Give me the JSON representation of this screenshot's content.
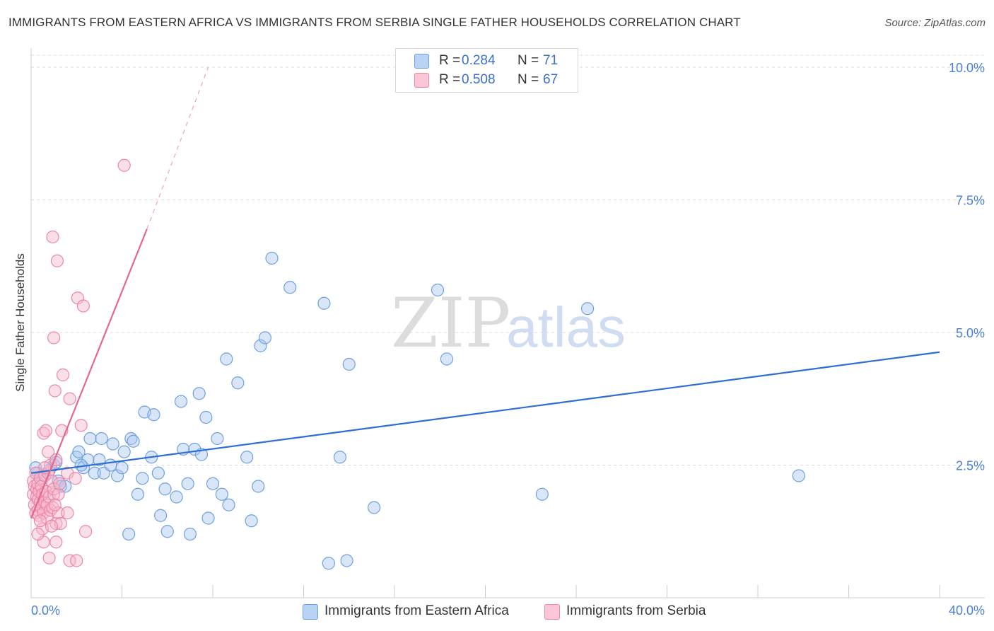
{
  "title": "IMMIGRANTS FROM EASTERN AFRICA VS IMMIGRANTS FROM SERBIA SINGLE FATHER HOUSEHOLDS CORRELATION CHART",
  "source": "Source: ZipAtlas.com",
  "watermark": {
    "zip": "ZIP",
    "atlas": "atlas"
  },
  "legend": {
    "r_label": "R =",
    "n_label": "N =",
    "rows": [
      {
        "r": "0.284",
        "n": "71"
      },
      {
        "r": "0.508",
        "n": "67"
      }
    ]
  },
  "colors": {
    "blue_fill": "#a9c8f0",
    "blue_stroke": "#6e9fe0",
    "blue_line": "#2e6fd1",
    "pink_fill": "#f6b7cb",
    "pink_stroke": "#ec86a8",
    "pink_line": "#e2688f",
    "grid": "#dedede",
    "axis_text": "#4a7fd4"
  },
  "chart_data": {
    "type": "scatter",
    "title": "IMMIGRANTS FROM EASTERN AFRICA VS IMMIGRANTS FROM SERBIA SINGLE FATHER HOUSEHOLDS CORRELATION CHART",
    "xlabel": "",
    "ylabel": "Single Father Households",
    "xlim": [
      0,
      40
    ],
    "ylim": [
      0,
      10.2
    ],
    "x_tick_labels": [
      "0.0%",
      "40.0%"
    ],
    "y_ticks": [
      2.5,
      5.0,
      7.5,
      10.0
    ],
    "y_tick_labels": [
      "2.5%",
      "5.0%",
      "7.5%",
      "10.0%"
    ],
    "grid": true,
    "series": [
      {
        "name": "Immigrants from Eastern Africa",
        "r": 0.284,
        "n": 71,
        "trend": {
          "x0": 0,
          "y0": 2.35,
          "x1": 40,
          "y1": 4.63
        },
        "points": [
          [
            0.3,
            2.35
          ],
          [
            0.6,
            2.3
          ],
          [
            0.8,
            2.4
          ],
          [
            1.0,
            2.5
          ],
          [
            1.2,
            2.2
          ],
          [
            1.3,
            2.1
          ],
          [
            1.5,
            2.1
          ],
          [
            2.0,
            2.65
          ],
          [
            2.1,
            2.75
          ],
          [
            2.3,
            2.45
          ],
          [
            2.5,
            2.6
          ],
          [
            2.6,
            3.0
          ],
          [
            2.8,
            2.35
          ],
          [
            3.0,
            2.6
          ],
          [
            3.1,
            3.0
          ],
          [
            3.2,
            2.35
          ],
          [
            3.5,
            2.5
          ],
          [
            3.6,
            2.9
          ],
          [
            3.8,
            2.3
          ],
          [
            4.0,
            2.45
          ],
          [
            4.1,
            2.75
          ],
          [
            4.3,
            1.2
          ],
          [
            4.4,
            3.0
          ],
          [
            4.5,
            2.95
          ],
          [
            4.7,
            1.95
          ],
          [
            4.9,
            2.25
          ],
          [
            5.0,
            3.5
          ],
          [
            5.3,
            2.65
          ],
          [
            5.4,
            3.45
          ],
          [
            5.6,
            2.35
          ],
          [
            5.7,
            1.55
          ],
          [
            5.9,
            2.05
          ],
          [
            6.0,
            1.25
          ],
          [
            6.4,
            1.9
          ],
          [
            6.6,
            3.7
          ],
          [
            6.7,
            2.8
          ],
          [
            6.9,
            2.15
          ],
          [
            7.0,
            1.2
          ],
          [
            7.2,
            2.8
          ],
          [
            7.4,
            3.85
          ],
          [
            7.5,
            2.7
          ],
          [
            7.7,
            3.4
          ],
          [
            7.8,
            1.5
          ],
          [
            8.0,
            2.15
          ],
          [
            8.2,
            3.0
          ],
          [
            8.4,
            1.95
          ],
          [
            8.6,
            4.5
          ],
          [
            8.7,
            1.75
          ],
          [
            9.1,
            4.05
          ],
          [
            9.5,
            2.65
          ],
          [
            9.7,
            1.45
          ],
          [
            10.0,
            2.1
          ],
          [
            10.1,
            4.75
          ],
          [
            10.3,
            4.9
          ],
          [
            10.6,
            6.4
          ],
          [
            11.4,
            5.85
          ],
          [
            12.9,
            5.55
          ],
          [
            13.1,
            0.65
          ],
          [
            13.6,
            2.65
          ],
          [
            13.9,
            0.7
          ],
          [
            14.0,
            4.4
          ],
          [
            15.1,
            1.7
          ],
          [
            17.9,
            5.8
          ],
          [
            18.3,
            4.5
          ],
          [
            22.5,
            1.95
          ],
          [
            24.5,
            5.45
          ],
          [
            33.8,
            2.3
          ],
          [
            0.2,
            2.45
          ],
          [
            0.5,
            2.25
          ],
          [
            1.1,
            2.55
          ],
          [
            2.2,
            2.5
          ]
        ]
      },
      {
        "name": "Immigrants from Serbia",
        "r": 0.508,
        "n": 67,
        "trend": {
          "x0": 0,
          "y0": 1.5,
          "x1": 5.1,
          "y1": 6.95,
          "dash_x1": 7.8,
          "dash_y1": 10.0
        },
        "points": [
          [
            0.1,
            2.2
          ],
          [
            0.1,
            1.95
          ],
          [
            0.15,
            2.1
          ],
          [
            0.15,
            1.75
          ],
          [
            0.2,
            1.6
          ],
          [
            0.2,
            2.35
          ],
          [
            0.25,
            1.9
          ],
          [
            0.25,
            2.05
          ],
          [
            0.3,
            1.65
          ],
          [
            0.3,
            1.85
          ],
          [
            0.3,
            2.15
          ],
          [
            0.35,
            1.55
          ],
          [
            0.35,
            2.0
          ],
          [
            0.4,
            1.8
          ],
          [
            0.4,
            2.25
          ],
          [
            0.45,
            1.7
          ],
          [
            0.45,
            2.1
          ],
          [
            0.5,
            1.3
          ],
          [
            0.5,
            1.95
          ],
          [
            0.55,
            1.05
          ],
          [
            0.55,
            1.6
          ],
          [
            0.55,
            3.1
          ],
          [
            0.6,
            1.8
          ],
          [
            0.6,
            2.3
          ],
          [
            0.65,
            2.0
          ],
          [
            0.65,
            3.15
          ],
          [
            0.7,
            1.75
          ],
          [
            0.7,
            1.5
          ],
          [
            0.75,
            2.75
          ],
          [
            0.75,
            2.35
          ],
          [
            0.8,
            0.75
          ],
          [
            0.8,
            1.9
          ],
          [
            0.85,
            1.65
          ],
          [
            0.85,
            2.5
          ],
          [
            0.9,
            2.2
          ],
          [
            0.95,
            1.7
          ],
          [
            0.95,
            6.8
          ],
          [
            1.0,
            1.95
          ],
          [
            1.0,
            2.05
          ],
          [
            1.0,
            4.9
          ],
          [
            1.05,
            3.9
          ],
          [
            1.1,
            1.4
          ],
          [
            1.1,
            2.6
          ],
          [
            1.1,
            1.05
          ],
          [
            1.15,
            6.35
          ],
          [
            1.2,
            1.6
          ],
          [
            1.2,
            1.95
          ],
          [
            1.3,
            1.4
          ],
          [
            1.35,
            3.15
          ],
          [
            1.4,
            4.2
          ],
          [
            1.6,
            2.35
          ],
          [
            1.6,
            1.6
          ],
          [
            1.7,
            0.7
          ],
          [
            1.7,
            3.75
          ],
          [
            1.95,
            2.25
          ],
          [
            2.0,
            0.7
          ],
          [
            2.05,
            5.65
          ],
          [
            2.2,
            3.25
          ],
          [
            2.3,
            5.5
          ],
          [
            2.4,
            1.25
          ],
          [
            4.1,
            8.15
          ],
          [
            0.4,
            1.45
          ],
          [
            0.6,
            2.45
          ],
          [
            0.3,
            1.2
          ],
          [
            0.9,
            1.35
          ],
          [
            1.05,
            1.75
          ],
          [
            1.25,
            2.15
          ]
        ]
      }
    ]
  },
  "bottom_legend": [
    {
      "label": "Immigrants from Eastern Africa"
    },
    {
      "label": "Immigrants from Serbia"
    }
  ]
}
